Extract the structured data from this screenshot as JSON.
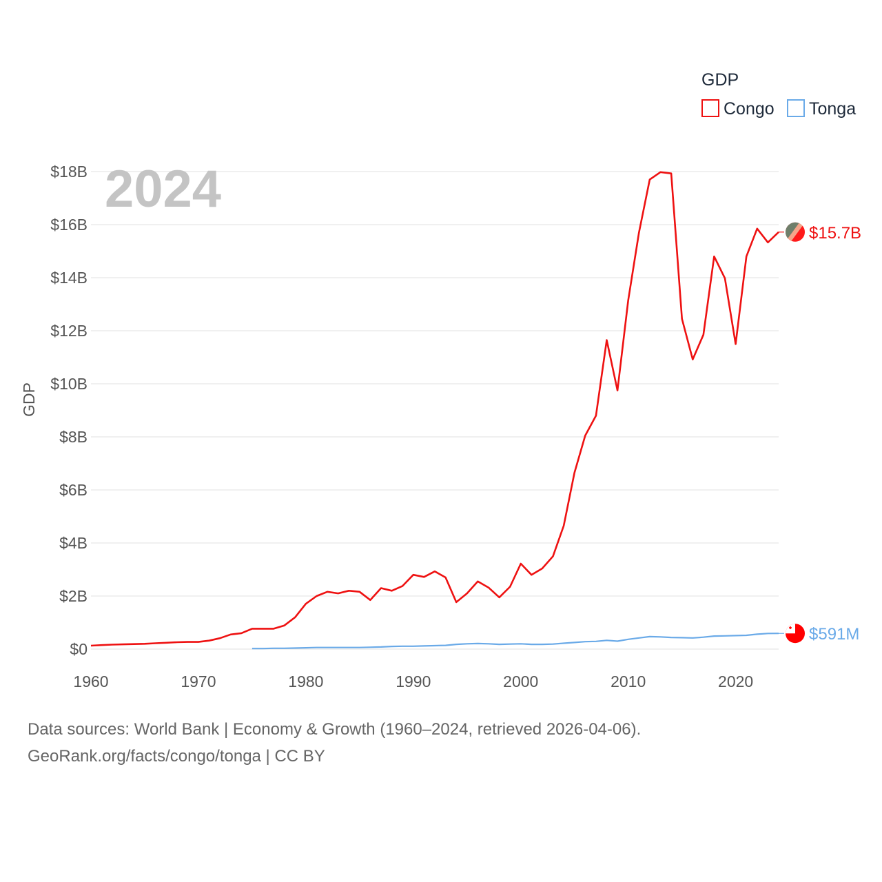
{
  "chart_data": {
    "type": "line",
    "legend_title": "GDP",
    "year_label": "2024",
    "ylabel": "GDP",
    "xlim": [
      1960,
      2024
    ],
    "ylim": [
      0,
      18
    ],
    "y_unit": "billions USD",
    "x_ticks": [
      "1960",
      "1970",
      "1980",
      "1990",
      "2000",
      "2010",
      "2020"
    ],
    "y_ticks": [
      {
        "value": 0,
        "label": "$0"
      },
      {
        "value": 2,
        "label": "$2B"
      },
      {
        "value": 4,
        "label": "$4B"
      },
      {
        "value": 6,
        "label": "$6B"
      },
      {
        "value": 8,
        "label": "$8B"
      },
      {
        "value": 10,
        "label": "$10B"
      },
      {
        "value": 12,
        "label": "$12B"
      },
      {
        "value": 14,
        "label": "$14B"
      },
      {
        "value": 16,
        "label": "$16B"
      },
      {
        "value": 18,
        "label": "$18B"
      }
    ],
    "series": [
      {
        "name": "Congo",
        "color": "#ee1111",
        "end_label": "$15.7B",
        "icon": "congo-flag-icon",
        "x": [
          1960,
          1961,
          1962,
          1963,
          1964,
          1965,
          1966,
          1967,
          1968,
          1969,
          1970,
          1971,
          1972,
          1973,
          1974,
          1975,
          1976,
          1977,
          1978,
          1979,
          1980,
          1981,
          1982,
          1983,
          1984,
          1985,
          1986,
          1987,
          1988,
          1989,
          1990,
          1991,
          1992,
          1993,
          1994,
          1995,
          1996,
          1997,
          1998,
          1999,
          2000,
          2001,
          2002,
          2003,
          2004,
          2005,
          2006,
          2007,
          2008,
          2009,
          2010,
          2011,
          2012,
          2013,
          2014,
          2015,
          2016,
          2017,
          2018,
          2019,
          2020,
          2021,
          2022,
          2023,
          2024
        ],
        "values": [
          0.13,
          0.15,
          0.17,
          0.18,
          0.19,
          0.2,
          0.22,
          0.24,
          0.26,
          0.27,
          0.27,
          0.32,
          0.41,
          0.55,
          0.6,
          0.77,
          0.77,
          0.77,
          0.89,
          1.2,
          1.71,
          2.0,
          2.16,
          2.1,
          2.2,
          2.16,
          1.85,
          2.3,
          2.2,
          2.38,
          2.8,
          2.72,
          2.93,
          2.7,
          1.77,
          2.1,
          2.55,
          2.32,
          1.95,
          2.35,
          3.22,
          2.8,
          3.04,
          3.5,
          4.65,
          6.65,
          8.05,
          8.8,
          11.65,
          9.75,
          13.15,
          15.7,
          17.7,
          17.98,
          17.93,
          12.45,
          10.92,
          11.85,
          14.8,
          13.98,
          11.5,
          14.8,
          15.85,
          15.33,
          15.72
        ]
      },
      {
        "name": "Tonga",
        "color": "#6aaae8",
        "end_label": "$591M",
        "icon": "tonga-flag-icon",
        "x": [
          1975,
          1976,
          1977,
          1978,
          1979,
          1980,
          1981,
          1982,
          1983,
          1984,
          1985,
          1986,
          1987,
          1988,
          1989,
          1990,
          1991,
          1992,
          1993,
          1994,
          1995,
          1996,
          1997,
          1998,
          1999,
          2000,
          2001,
          2002,
          2003,
          2004,
          2005,
          2006,
          2007,
          2008,
          2009,
          2010,
          2011,
          2012,
          2013,
          2014,
          2015,
          2016,
          2017,
          2018,
          2019,
          2020,
          2021,
          2022,
          2023,
          2024
        ],
        "values": [
          0.02,
          0.02,
          0.03,
          0.03,
          0.04,
          0.05,
          0.06,
          0.06,
          0.06,
          0.06,
          0.06,
          0.07,
          0.08,
          0.1,
          0.11,
          0.11,
          0.12,
          0.13,
          0.14,
          0.18,
          0.2,
          0.21,
          0.2,
          0.18,
          0.19,
          0.2,
          0.18,
          0.18,
          0.19,
          0.22,
          0.25,
          0.28,
          0.29,
          0.33,
          0.3,
          0.37,
          0.42,
          0.47,
          0.46,
          0.44,
          0.43,
          0.42,
          0.45,
          0.49,
          0.5,
          0.51,
          0.52,
          0.56,
          0.59,
          0.591
        ]
      }
    ]
  },
  "footer": {
    "line1": "Data sources: World Bank | Economy & Growth (1960–2024, retrieved 2026-04-06).",
    "line2": "GeoRank.org/facts/congo/tonga | CC BY"
  }
}
